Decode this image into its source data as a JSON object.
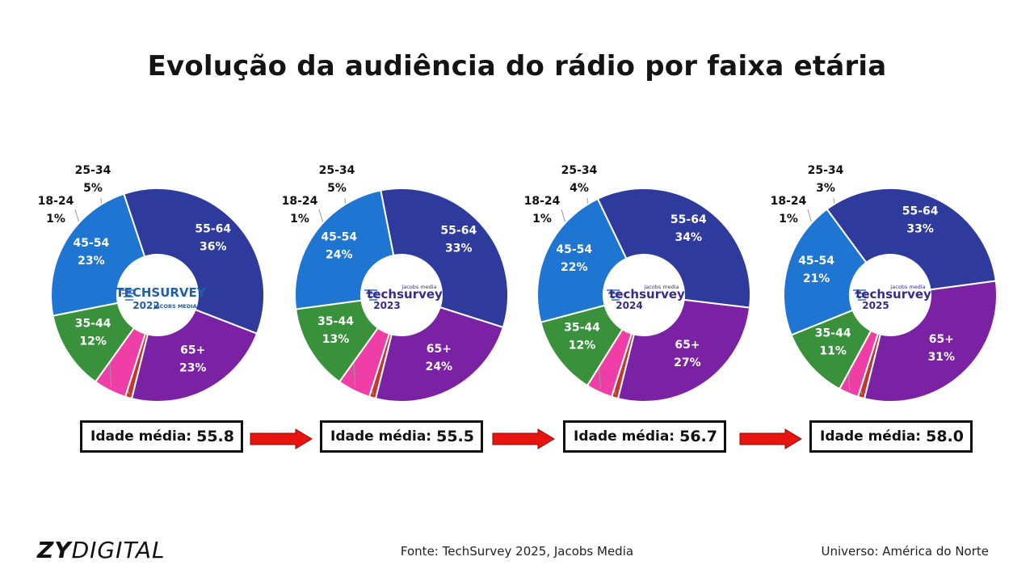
{
  "title": "Evolução da audiência do rádio por faixa etária",
  "chart_data": [
    {
      "type": "pie",
      "center_logo": "TECHSURVEY 2022 JACOBS MEDIA",
      "center_year": "2022",
      "categories": [
        "18-24",
        "25-34",
        "35-44",
        "45-54",
        "55-64",
        "65+"
      ],
      "values": [
        1,
        5,
        12,
        23,
        36,
        23
      ],
      "labels": [
        "1%",
        "5%",
        "12%",
        "23%",
        "36%",
        "23%"
      ],
      "average_age_label": "Idade média:",
      "average_age": "55.8"
    },
    {
      "type": "pie",
      "center_logo": "jacobs media techsurvey 2023",
      "center_year": "2023",
      "categories": [
        "18-24",
        "25-34",
        "35-44",
        "45-54",
        "55-64",
        "65+"
      ],
      "values": [
        1,
        5,
        13,
        24,
        33,
        24
      ],
      "labels": [
        "1%",
        "5%",
        "13%",
        "24%",
        "33%",
        "24%"
      ],
      "average_age_label": "Idade média:",
      "average_age": "55.5"
    },
    {
      "type": "pie",
      "center_logo": "jacobs media techsurvey 2024",
      "center_year": "2024",
      "categories": [
        "18-24",
        "25-34",
        "35-44",
        "45-54",
        "55-64",
        "65+"
      ],
      "values": [
        1,
        4,
        12,
        22,
        34,
        27
      ],
      "labels": [
        "1%",
        "4%",
        "12%",
        "22%",
        "34%",
        "27%"
      ],
      "average_age_label": "Idade média:",
      "average_age": "56.7"
    },
    {
      "type": "pie",
      "center_logo": "jacobs media techsurvey 2025",
      "center_year": "2025",
      "categories": [
        "18-24",
        "25-34",
        "35-44",
        "45-54",
        "55-64",
        "65+"
      ],
      "values": [
        1,
        3,
        11,
        21,
        33,
        31
      ],
      "labels": [
        "1%",
        "3%",
        "11%",
        "21%",
        "33%",
        "31%"
      ],
      "average_age_label": "Idade média:",
      "average_age": "58.0"
    }
  ],
  "colors": {
    "18-24": "#c0392b",
    "25-34": "#ef3fa6",
    "35-44": "#3a913c",
    "45-54": "#1f76d2",
    "55-64": "#2e3a9c",
    "65+": "#7a22a3",
    "arrow": "#e8140f",
    "logo": "#3a2a8c"
  },
  "footer": {
    "brand_bold": "ZY",
    "brand_light": "DIGITAL",
    "source": "Fonte: TechSurvey 2025, Jacobs Media",
    "universe": "Universo: América do Norte"
  }
}
